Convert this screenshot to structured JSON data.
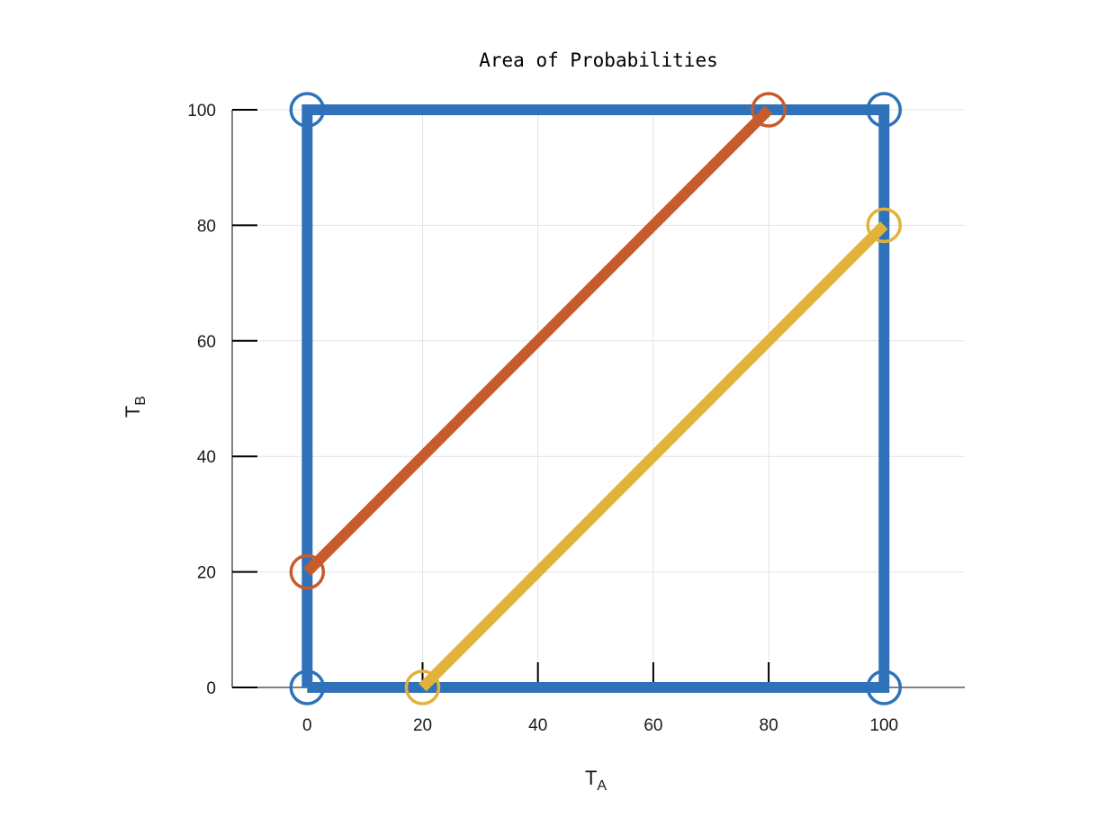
{
  "chart_data": {
    "type": "line",
    "title": "Area of Probabilities",
    "xlabel": {
      "main": "T",
      "sub": "A"
    },
    "ylabel": {
      "main": "T",
      "sub": "B"
    },
    "xlim": [
      -13,
      114
    ],
    "ylim": [
      0,
      100
    ],
    "xticks": [
      0,
      20,
      40,
      60,
      80,
      100
    ],
    "yticks": [
      0,
      20,
      40,
      60,
      80,
      100
    ],
    "grid": true,
    "legend": "none",
    "series": [
      {
        "color": "#2f72ba",
        "points": [
          [
            0,
            0
          ],
          [
            100,
            0
          ],
          [
            100,
            100
          ],
          [
            0,
            100
          ],
          [
            0,
            0
          ]
        ],
        "markers": [
          [
            0,
            0
          ],
          [
            100,
            0
          ],
          [
            100,
            100
          ],
          [
            0,
            100
          ]
        ]
      },
      {
        "color": "#c75b2c",
        "points": [
          [
            0,
            20
          ],
          [
            80,
            100
          ]
        ],
        "markers": [
          [
            0,
            20
          ],
          [
            80,
            100
          ]
        ]
      },
      {
        "color": "#e2b23c",
        "points": [
          [
            20,
            0
          ],
          [
            100,
            80
          ]
        ],
        "markers": [
          [
            20,
            0
          ],
          [
            100,
            80
          ]
        ]
      }
    ]
  }
}
